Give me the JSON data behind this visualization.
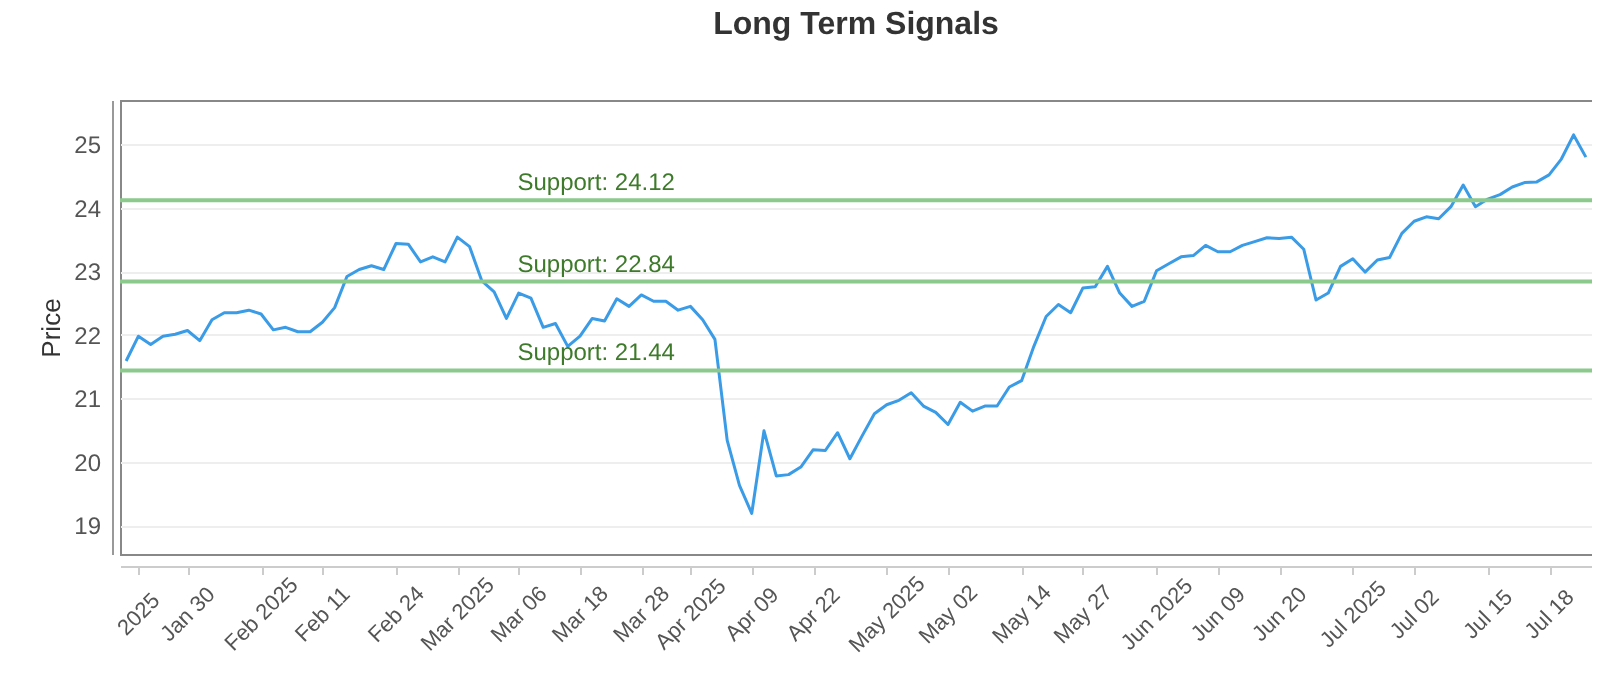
{
  "chart_data": {
    "type": "line",
    "title": "Long Term Signals",
    "ylabel": "Price",
    "categories": [
      null,
      "2025",
      null,
      null,
      null,
      "Jan 30",
      null,
      null,
      null,
      null,
      null,
      "Feb 2025",
      null,
      null,
      null,
      null,
      "Feb 11",
      null,
      null,
      null,
      null,
      null,
      "Feb 24",
      null,
      null,
      null,
      null,
      "Mar 2025",
      null,
      null,
      null,
      null,
      "Mar 06",
      null,
      null,
      null,
      null,
      "Mar 18",
      null,
      null,
      null,
      null,
      "Mar 28",
      null,
      null,
      null,
      "Apr 2025",
      null,
      null,
      null,
      null,
      "Apr 09",
      null,
      null,
      null,
      null,
      "Apr 22",
      null,
      null,
      null,
      null,
      null,
      "May 2025",
      null,
      null,
      null,
      null,
      "May 02",
      null,
      null,
      null,
      null,
      null,
      "May 14",
      null,
      null,
      null,
      null,
      "May 27",
      null,
      null,
      null,
      null,
      null,
      "Jun 2025",
      null,
      null,
      null,
      null,
      "Jun 09",
      null,
      null,
      null,
      null,
      "Jun 20",
      null,
      null,
      null,
      null,
      null,
      "Jul 2025",
      null,
      null,
      null,
      null,
      "Jul 02",
      null,
      null,
      null,
      null,
      null,
      "Jul 15",
      null,
      null,
      null,
      null,
      "Jul 18",
      null,
      null,
      null
    ],
    "series": [
      {
        "color": "#3a9be6",
        "values": [
          21.59,
          21.98,
          21.85,
          21.98,
          22.01,
          22.07,
          21.91,
          22.24,
          22.35,
          22.35,
          22.39,
          22.33,
          22.08,
          22.12,
          22.05,
          22.05,
          22.2,
          22.43,
          22.92,
          23.03,
          23.09,
          23.03,
          23.44,
          23.43,
          23.15,
          23.23,
          23.15,
          23.54,
          23.39,
          22.85,
          22.68,
          22.26,
          22.66,
          22.58,
          22.12,
          22.18,
          21.82,
          21.98,
          22.26,
          22.22,
          22.57,
          22.45,
          22.63,
          22.53,
          22.53,
          22.39,
          22.45,
          22.24,
          21.93,
          20.34,
          19.63,
          19.19,
          20.49,
          19.78,
          19.8,
          19.92,
          20.19,
          20.18,
          20.46,
          20.05,
          20.41,
          20.76,
          20.9,
          20.97,
          21.09,
          20.88,
          20.78,
          20.59,
          20.94,
          20.8,
          20.88,
          20.88,
          21.18,
          21.28,
          21.82,
          22.29,
          22.48,
          22.35,
          22.74,
          22.76,
          23.08,
          22.66,
          22.45,
          22.53,
          23.01,
          23.12,
          23.23,
          23.25,
          23.41,
          23.31,
          23.31,
          23.41,
          23.47,
          23.53,
          23.52,
          23.54,
          23.35,
          22.55,
          22.66,
          23.08,
          23.2,
          22.99,
          23.18,
          23.22,
          23.6,
          23.79,
          23.86,
          23.83,
          24.02,
          24.36,
          24.02,
          24.14,
          24.21,
          24.33,
          24.4,
          24.41,
          24.52,
          24.77,
          25.15,
          24.8
        ]
      }
    ],
    "ylim": [
      18.55,
      25.7
    ],
    "yticks": [
      19,
      20,
      21,
      22,
      23,
      24,
      25
    ],
    "grid": "y",
    "legend": false,
    "line_style": "solid",
    "ref_lines": [
      {
        "axis": "y",
        "value": 24.12,
        "label": "Support: 24.12",
        "color": "#8cc98c"
      },
      {
        "axis": "y",
        "value": 22.84,
        "label": "Support: 22.84",
        "color": "#8cc98c"
      },
      {
        "axis": "y",
        "value": 21.44,
        "label": "Support: 21.44",
        "color": "#8cc98c"
      }
    ]
  }
}
